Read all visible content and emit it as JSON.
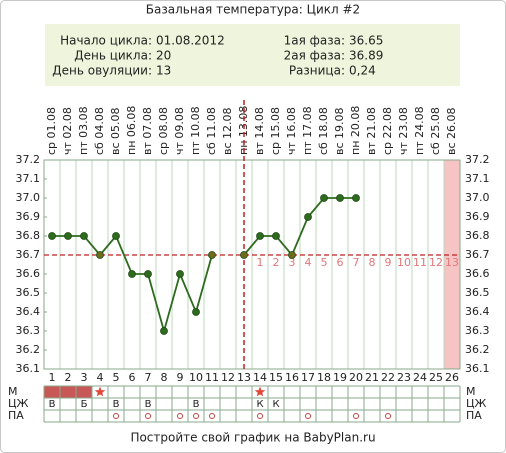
{
  "title": "Базальная температура: Цикл #2",
  "info": {
    "left": [
      {
        "label": "Начало цикла:",
        "value": "01.08.2012"
      },
      {
        "label": "День цикла:",
        "value": "20"
      },
      {
        "label": "День овуляции:",
        "value": "13"
      }
    ],
    "right": [
      {
        "label": "1ая фаза:",
        "value": "36.65"
      },
      {
        "label": "2ая фаза:",
        "value": "36.89"
      },
      {
        "label": "Разница:",
        "value": "0,24"
      }
    ]
  },
  "chart_data": {
    "type": "line",
    "categories": [
      "ср 01.08",
      "чт 02.08",
      "пт 03.08",
      "сб 04.08",
      "вс 05.08",
      "пн 06.08",
      "вт 07.08",
      "ср 08.08",
      "чт 09.08",
      "пт 10.08",
      "сб 11.08",
      "вс 12.08",
      "пн 13.08",
      "вт 14.08",
      "ср 15.08",
      "чт 16.08",
      "пт 17.08",
      "сб 18.08",
      "вс 19.08",
      "пн 20.08",
      "вт 21.08",
      "ср 22.08",
      "чт 23.08",
      "пт 24.08",
      "сб 25.08",
      "вс 26.08"
    ],
    "days": [
      1,
      2,
      3,
      4,
      5,
      6,
      7,
      8,
      9,
      10,
      11,
      12,
      13,
      14,
      15,
      16,
      17,
      18,
      19,
      20,
      21,
      22,
      23,
      24,
      25,
      26
    ],
    "values": [
      36.8,
      36.8,
      36.8,
      36.7,
      36.8,
      36.6,
      36.6,
      36.3,
      36.6,
      36.4,
      36.7,
      null,
      36.7,
      36.8,
      36.8,
      36.7,
      36.9,
      37.0,
      37.0,
      37.0,
      null,
      null,
      null,
      null,
      null,
      null
    ],
    "color": "#2e6b1e",
    "ylim": [
      36.1,
      37.2
    ],
    "yticks": [
      36.1,
      36.2,
      36.3,
      36.4,
      36.5,
      36.6,
      36.7,
      36.8,
      36.9,
      {
        "value": 37,
        "label": "37.0"
      },
      37.1,
      37.2
    ],
    "coverline": 36.7,
    "ovulation_day": 13,
    "luteal_day_numbers": [
      1,
      2,
      3,
      4,
      5,
      6,
      7,
      8,
      9,
      10,
      11,
      12,
      13
    ],
    "shaded_day": 26,
    "row_labels": [
      "М",
      "ЦЖ",
      "ПА"
    ],
    "menstruation_days": [
      1,
      2,
      3
    ],
    "star_days": [
      4,
      14
    ],
    "mucus": [
      "В",
      null,
      "Б",
      null,
      "В",
      null,
      "В",
      null,
      null,
      "В",
      null,
      null,
      null,
      "К",
      "К",
      null,
      null,
      null,
      null,
      null,
      null,
      null,
      null,
      null,
      null,
      null
    ],
    "intercourse_days": [
      5,
      7,
      9,
      10,
      11,
      14,
      17,
      20,
      22
    ]
  },
  "footer": "Постройте свой график на BabyPlan.ru"
}
